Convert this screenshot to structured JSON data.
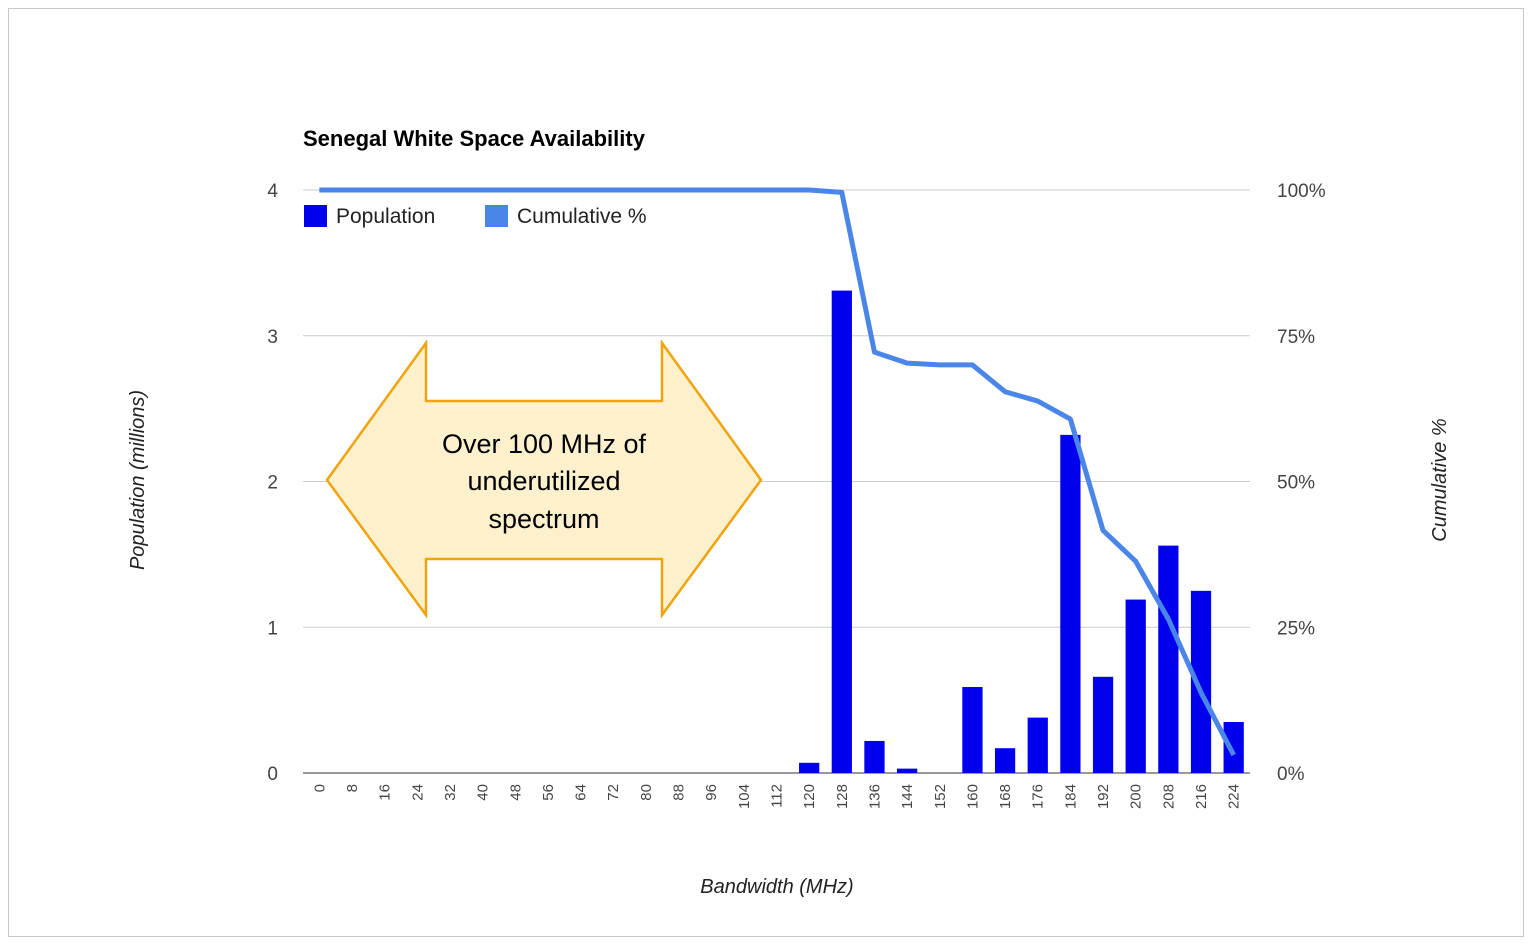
{
  "chart_data": {
    "type": "bar",
    "title": "Senegal White Space Availability",
    "xlabel": "Bandwidth (MHz)",
    "ylabel": "Population (millions)",
    "y2label": "Cumulative %",
    "ylim": [
      0,
      4
    ],
    "y2lim": [
      0,
      100
    ],
    "yticks": [
      "0",
      "1",
      "2",
      "3",
      "4"
    ],
    "y2ticks": [
      "0%",
      "25%",
      "50%",
      "75%",
      "100%"
    ],
    "categories": [
      "0",
      "8",
      "16",
      "24",
      "32",
      "40",
      "48",
      "56",
      "64",
      "72",
      "80",
      "88",
      "96",
      "104",
      "112",
      "120",
      "128",
      "136",
      "144",
      "152",
      "160",
      "168",
      "176",
      "184",
      "192",
      "200",
      "208",
      "216",
      "224"
    ],
    "series": [
      {
        "name": "Population",
        "type": "bar",
        "axis": "left",
        "color": "#0000ee",
        "values": [
          0,
          0,
          0,
          0,
          0,
          0,
          0,
          0,
          0,
          0,
          0,
          0,
          0,
          0,
          0,
          0.07,
          3.31,
          0.22,
          0.03,
          0,
          0.59,
          0.17,
          0.38,
          2.32,
          0.66,
          1.19,
          1.56,
          1.25,
          0.35
        ]
      },
      {
        "name": "Cumulative %",
        "type": "line",
        "axis": "right",
        "color": "#4a86e8",
        "values": [
          100,
          100,
          100,
          100,
          100,
          100,
          100,
          100,
          100,
          100,
          100,
          100,
          100,
          100,
          100,
          100,
          99.6,
          72.2,
          70.3,
          70.0,
          70.0,
          65.4,
          63.8,
          60.7,
          41.6,
          36.3,
          26.4,
          13.8,
          3.1
        ]
      }
    ],
    "legend": "top-left",
    "grid": true,
    "annotation": {
      "shape": "double-arrow",
      "text_lines": [
        "Over 100 MHz of",
        "underutilized",
        "spectrum"
      ],
      "fill": "#fdf1cd",
      "stroke": "#f0a30a"
    }
  }
}
